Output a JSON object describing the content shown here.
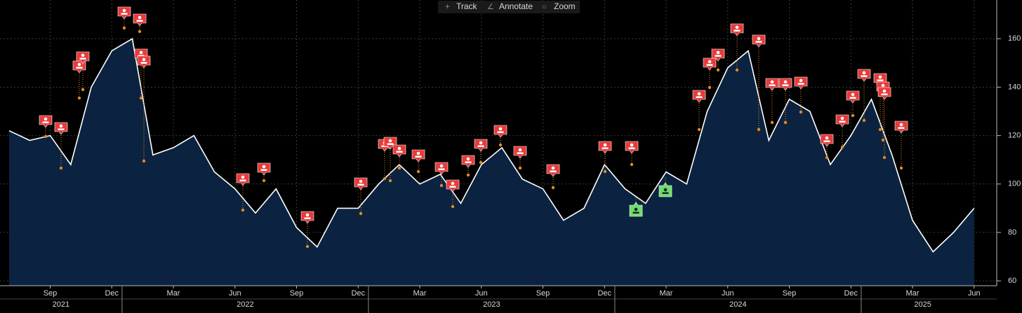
{
  "toolbar": {
    "items": [
      "Track",
      "Annotate",
      "Zoom"
    ]
  },
  "chart_data": {
    "type": "area",
    "x": [
      "2021-07",
      "2021-08",
      "2021-09",
      "2021-10",
      "2021-11",
      "2021-12",
      "2022-01",
      "2022-02",
      "2022-03",
      "2022-04",
      "2022-05",
      "2022-06",
      "2022-07",
      "2022-08",
      "2022-09",
      "2022-10",
      "2022-11",
      "2022-12",
      "2023-01",
      "2023-02",
      "2023-03",
      "2023-04",
      "2023-05",
      "2023-06",
      "2023-07",
      "2023-08",
      "2023-09",
      "2023-10",
      "2023-11",
      "2023-12",
      "2024-01",
      "2024-02",
      "2024-03",
      "2024-04",
      "2024-05",
      "2024-06",
      "2024-07",
      "2024-08",
      "2024-09",
      "2024-10",
      "2024-11",
      "2024-12",
      "2025-01",
      "2025-02",
      "2025-03",
      "2025-04",
      "2025-05",
      "2025-06"
    ],
    "series": [
      {
        "color": "#ffffff",
        "values": [
          122,
          118,
          120,
          108,
          140,
          155,
          160,
          112,
          115,
          120,
          105,
          98,
          88,
          98,
          82,
          74,
          90,
          90,
          100,
          108,
          100,
          104,
          92,
          108,
          115,
          102,
          98,
          85,
          90,
          108,
          98,
          92,
          105,
          100,
          130,
          148,
          155,
          118,
          135,
          130,
          108,
          120,
          135,
          112,
          85,
          72,
          80,
          90
        ]
      }
    ],
    "xticks": [
      {
        "value": "2021-09",
        "label": "Sep"
      },
      {
        "value": "2021-12",
        "label": "Dec"
      },
      {
        "value": "2022-03",
        "label": "Mar"
      },
      {
        "value": "2022-06",
        "label": "Jun"
      },
      {
        "value": "2022-09",
        "label": "Sep"
      },
      {
        "value": "2022-12",
        "label": "Dec"
      },
      {
        "value": "2023-03",
        "label": "Mar"
      },
      {
        "value": "2023-06",
        "label": "Jun"
      },
      {
        "value": "2023-09",
        "label": "Sep"
      },
      {
        "value": "2023-12",
        "label": "Dec"
      },
      {
        "value": "2024-03",
        "label": "Mar"
      },
      {
        "value": "2024-06",
        "label": "Jun"
      },
      {
        "value": "2024-09",
        "label": "Sep"
      },
      {
        "value": "2024-12",
        "label": "Dec"
      },
      {
        "value": "2025-03",
        "label": "Mar"
      },
      {
        "value": "2025-06",
        "label": "Jun"
      }
    ],
    "years": [
      "2021",
      "2022",
      "2023",
      "2024",
      "2025"
    ],
    "ylim": [
      58,
      176
    ],
    "yticks": [
      60,
      80,
      100,
      120,
      140,
      160
    ],
    "grid": true
  }
}
